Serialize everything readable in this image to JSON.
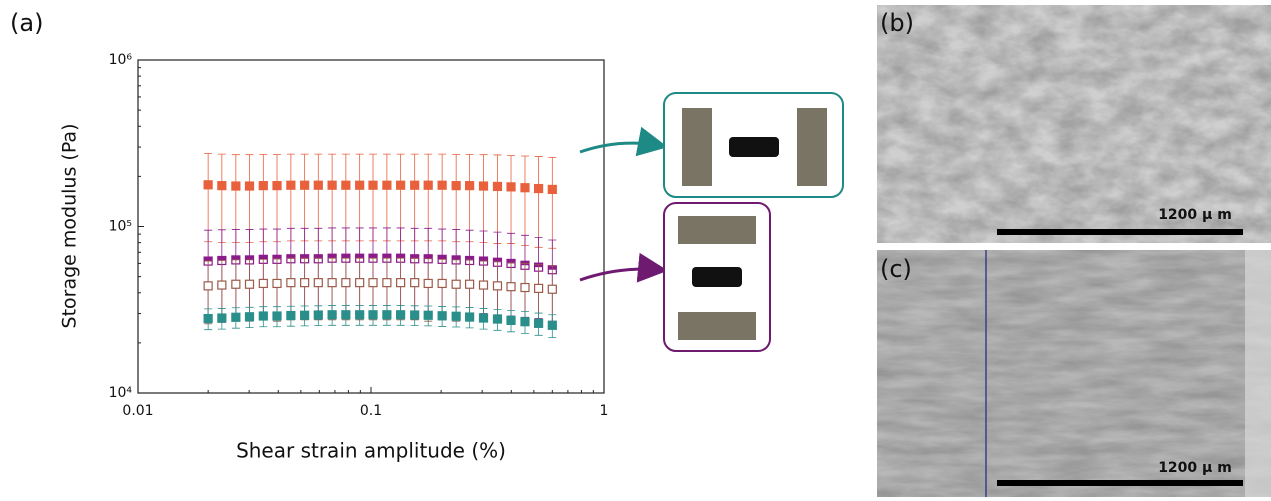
{
  "chart_data": {
    "type": "scatter",
    "panel_label": "(a)",
    "xlabel": "Shear strain amplitude (%)",
    "ylabel": "Storage modulus (Pa)",
    "xscale": "log",
    "yscale": "log",
    "xlim": [
      0.01,
      1
    ],
    "xticks": [
      0.01,
      0.1,
      1
    ],
    "ylim": [
      10000,
      1000000
    ],
    "yticks": [
      {
        "value": 10000,
        "label": "10⁴"
      },
      {
        "value": 100000,
        "label": "10⁵"
      },
      {
        "value": 1000000,
        "label": "10⁶"
      }
    ],
    "x": [
      0.02,
      0.0229,
      0.0263,
      0.0301,
      0.0345,
      0.0395,
      0.0453,
      0.0519,
      0.0594,
      0.0681,
      0.078,
      0.0894,
      0.102,
      0.117,
      0.134,
      0.154,
      0.176,
      0.202,
      0.232,
      0.265,
      0.304,
      0.349,
      0.399,
      0.458,
      0.524,
      0.6
    ],
    "series": [
      {
        "color": "#e8603c",
        "marker": "filled",
        "values": [
          178000,
          176000,
          175000,
          175000,
          176000,
          176000,
          177000,
          177000,
          177000,
          177000,
          177000,
          177000,
          177000,
          177000,
          177000,
          177000,
          177000,
          177000,
          176000,
          176000,
          175000,
          174000,
          173000,
          171000,
          169000,
          167000
        ],
        "errors": [
          97000,
          96000,
          95000,
          95000,
          95000,
          95000,
          95000,
          95000,
          95000,
          95000,
          95000,
          95000,
          95000,
          95000,
          95000,
          95000,
          95000,
          95000,
          95000,
          95000,
          95000,
          95000,
          94000,
          94000,
          94000,
          93000
        ]
      },
      {
        "color": "#8b1a8b",
        "marker": "half",
        "values": [
          62000,
          62500,
          63000,
          63000,
          63500,
          63500,
          64000,
          64000,
          64000,
          64500,
          64500,
          64500,
          64500,
          64500,
          64500,
          64000,
          64000,
          63500,
          63000,
          62500,
          62000,
          61000,
          60000,
          58500,
          57000,
          55000
        ],
        "errors": [
          33000,
          33000,
          33000,
          33000,
          33000,
          33000,
          33500,
          33500,
          33500,
          33500,
          33500,
          33500,
          33500,
          33500,
          33500,
          33500,
          33500,
          33000,
          33000,
          32500,
          32000,
          31500,
          31000,
          30000,
          29000,
          28000
        ]
      },
      {
        "color": "#9b5a4a",
        "marker": "open",
        "values": [
          44000,
          44500,
          45000,
          45000,
          45500,
          45500,
          46000,
          46000,
          46000,
          46000,
          46000,
          46000,
          46000,
          46000,
          46000,
          46000,
          45500,
          45500,
          45000,
          45000,
          44500,
          44000,
          43500,
          43000,
          42500,
          42000
        ],
        "errors": [
          18000,
          18000,
          18000,
          18000,
          18000,
          18500,
          18500,
          18500,
          18500,
          18500,
          18500,
          18500,
          18500,
          18500,
          18500,
          18500,
          18500,
          18000,
          18000,
          18000,
          17500,
          17500,
          17000,
          17000,
          16500,
          16000
        ]
      },
      {
        "color": "#2a8f8a",
        "marker": "filled",
        "values": [
          28000,
          28200,
          28500,
          28700,
          29000,
          29000,
          29200,
          29300,
          29400,
          29500,
          29500,
          29500,
          29500,
          29500,
          29500,
          29400,
          29300,
          29100,
          28900,
          28600,
          28200,
          27800,
          27300,
          26800,
          26200,
          25500
        ],
        "errors": [
          4000,
          4000,
          4000,
          4000,
          4000,
          4000,
          4000,
          4000,
          4000,
          4000,
          4000,
          4000,
          4000,
          4000,
          4000,
          4000,
          4000,
          4000,
          4000,
          4000,
          4000,
          4000,
          4000,
          4000,
          4000,
          4000
        ]
      }
    ]
  },
  "panels": [
    {
      "label": "(b)",
      "scale_bar": "1200 μ m"
    },
    {
      "label": "(c)",
      "scale_bar": "1200 μ m"
    }
  ]
}
